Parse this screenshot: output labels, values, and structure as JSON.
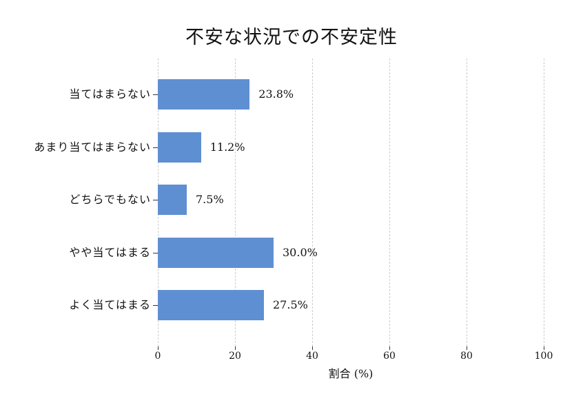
{
  "chart_data": {
    "type": "bar",
    "orientation": "horizontal",
    "title": "不安な状況での不安定性",
    "categories": [
      "当てはまらない",
      "あまり当てはまらない",
      "どちらでもない",
      "やや当てはまる",
      "よく当てはまる"
    ],
    "values": [
      23.8,
      11.2,
      7.5,
      30.0,
      27.5
    ],
    "value_labels": [
      "23.8%",
      "11.2%",
      "7.5%",
      "30.0%",
      "27.5%"
    ],
    "xlabel": "割合 (%)",
    "ylabel": "",
    "xlim": [
      0,
      100
    ],
    "xticks": [
      0,
      20,
      40,
      60,
      80,
      100
    ],
    "xtick_labels": [
      "0",
      "20",
      "40",
      "60",
      "80",
      "100"
    ],
    "grid": "vertical-dashed",
    "legend": "none",
    "bar_color": "#5f8fd3",
    "grid_color": "#cccccc",
    "text_color": "#111111",
    "background_color": "#ffffff"
  }
}
